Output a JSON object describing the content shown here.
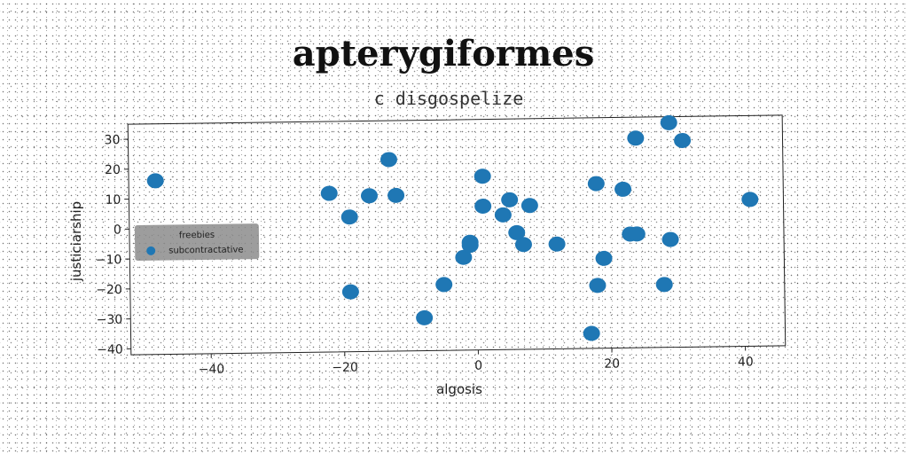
{
  "chart_data": {
    "type": "scatter",
    "title": "apterygiformes",
    "subtitle": "c disgospelize",
    "xlabel": "algosis",
    "ylabel": "justiciarship",
    "xlim": [
      -52,
      46
    ],
    "ylim": [
      -42,
      35
    ],
    "xticks": [
      -40,
      -20,
      0,
      20,
      40
    ],
    "yticks": [
      -40,
      -30,
      -20,
      -10,
      0,
      10,
      20,
      30
    ],
    "grid": false,
    "legend": {
      "title": "freebies",
      "placement": "center-left",
      "entries": [
        "subcontractative"
      ]
    },
    "series": [
      {
        "name": "subcontractative",
        "color": "#1f77b4",
        "points": [
          [
            -48,
            16
          ],
          [
            -22,
            11
          ],
          [
            -19,
            3
          ],
          [
            -19,
            -22
          ],
          [
            -16,
            10
          ],
          [
            -13,
            22
          ],
          [
            -12,
            10
          ],
          [
            -8,
            -31
          ],
          [
            -5,
            -20
          ],
          [
            -2,
            -11
          ],
          [
            -1,
            -6
          ],
          [
            -1,
            -7
          ],
          [
            1,
            6
          ],
          [
            1,
            16
          ],
          [
            4,
            3
          ],
          [
            5,
            8
          ],
          [
            6,
            -3
          ],
          [
            7,
            -7
          ],
          [
            8,
            6
          ],
          [
            12,
            -7
          ],
          [
            17,
            -37
          ],
          [
            18,
            13
          ],
          [
            18,
            -21
          ],
          [
            19,
            -12
          ],
          [
            22,
            11
          ],
          [
            23,
            -4
          ],
          [
            24,
            -4
          ],
          [
            24,
            28
          ],
          [
            28,
            -21
          ],
          [
            29,
            -6
          ],
          [
            29,
            33
          ],
          [
            31,
            27
          ],
          [
            41,
            7
          ]
        ]
      }
    ]
  }
}
